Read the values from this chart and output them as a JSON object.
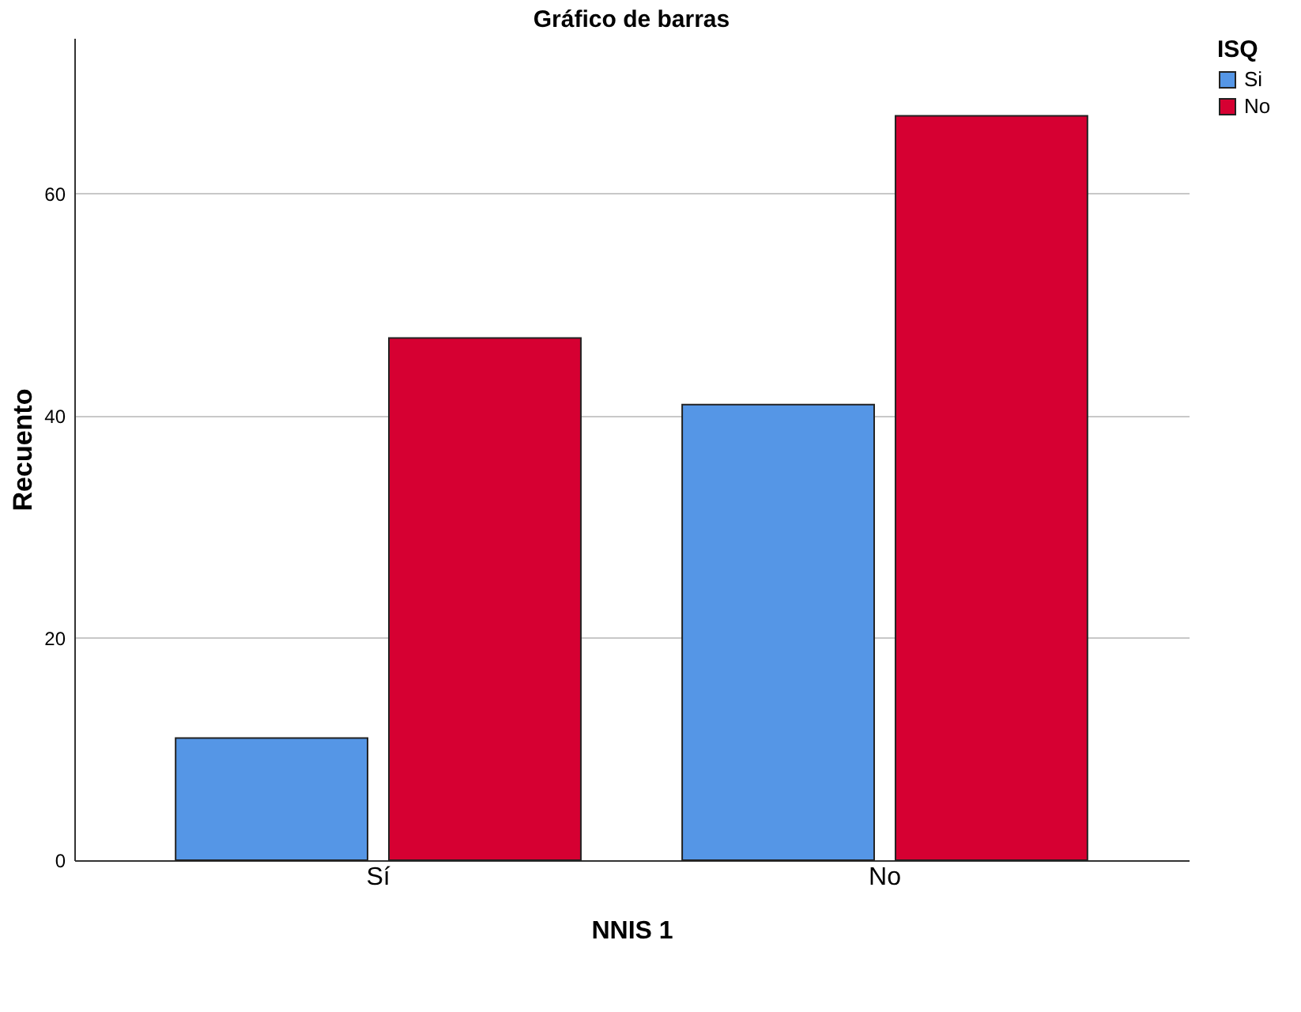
{
  "chart_data": {
    "type": "bar",
    "title": "Gráfico de barras",
    "xlabel": "NNIS 1",
    "ylabel": "Recuento",
    "legend_title": "ISQ",
    "categories": [
      "Sí",
      "No"
    ],
    "series": [
      {
        "name": "Si",
        "color": "#5596e6",
        "values": [
          11,
          41
        ]
      },
      {
        "name": "No",
        "color": "#d60032",
        "values": [
          47,
          67
        ]
      }
    ],
    "ylim": [
      0,
      74
    ],
    "yticks": [
      0,
      20,
      40,
      60
    ],
    "grid": "y",
    "legend": "top right"
  }
}
